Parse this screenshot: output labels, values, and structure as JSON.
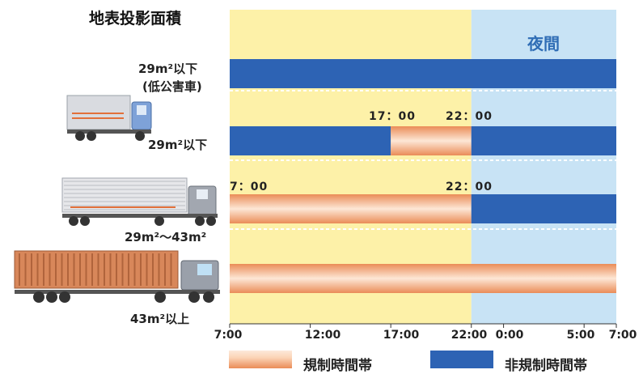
{
  "chart_data": {
    "type": "bar",
    "title": "地表投影面積",
    "night_label": "夜間",
    "axis_ticks": [
      "7:00",
      "12:00",
      "17:00",
      "22:00",
      "0:00",
      "5:00",
      "7:00"
    ],
    "categories": [
      {
        "label_lines": [
          "29m²以下",
          "(低公害車)"
        ]
      },
      {
        "label_lines": [
          "29m²以下"
        ]
      },
      {
        "label_lines": [
          "29m²〜43m²"
        ]
      },
      {
        "label_lines": [
          "43m²以上"
        ]
      }
    ],
    "rows": [
      {
        "segments": [
          {
            "from": 7,
            "to": 31,
            "kind": "non_regulated"
          }
        ]
      },
      {
        "segments": [
          {
            "from": 7,
            "to": 17,
            "kind": "non_regulated"
          },
          {
            "from": 17,
            "to": 22,
            "kind": "regulated"
          },
          {
            "from": 22,
            "to": 31,
            "kind": "non_regulated"
          }
        ]
      },
      {
        "segments": [
          {
            "from": 7,
            "to": 22,
            "kind": "regulated"
          },
          {
            "from": 22,
            "to": 31,
            "kind": "non_regulated"
          }
        ]
      },
      {
        "segments": [
          {
            "from": 7,
            "to": 31,
            "kind": "regulated"
          }
        ]
      }
    ],
    "annotations": [
      {
        "row": 1,
        "start": "17：00",
        "end": "22：00"
      },
      {
        "row": 2,
        "start": "7：00",
        "end": "22：00"
      }
    ],
    "night_start": 22,
    "xlim": [
      7,
      31
    ],
    "legend": [
      {
        "kind": "regulated",
        "label": "規制時間帯"
      },
      {
        "kind": "non_regulated",
        "label": "非規制時間帯"
      }
    ],
    "colors": {
      "day_bg": "#fdf1a8",
      "night_bg": "#c8e3f5",
      "non_regulated": "#2d63b4",
      "regulated_light": "#fde7d6",
      "regulated_dark": "#ea8c57"
    }
  }
}
